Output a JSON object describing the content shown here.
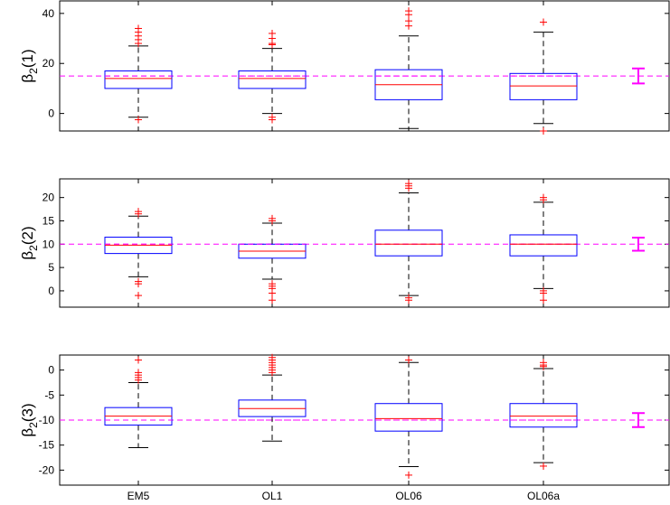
{
  "chart_data": [
    {
      "type": "boxplot",
      "ylabel": "β₂(1)",
      "ylabel_main": "β",
      "ylabel_sub": "2",
      "ylabel_tail": "(1)",
      "ylim": [
        -7,
        45
      ],
      "yticks": [
        0,
        20,
        40
      ],
      "reference_value": 15,
      "interval": {
        "low": 12,
        "high": 18,
        "mid": 15
      },
      "categories": [
        "EM5",
        "OL1",
        "OL06",
        "OL06a"
      ],
      "boxes": [
        {
          "q1": 10,
          "median": 14,
          "q3": 17,
          "mean": 15,
          "whisker_low": -1.5,
          "whisker_high": 27,
          "outliers": [
            -2.5,
            28,
            29.5,
            31,
            32.5,
            34
          ]
        },
        {
          "q1": 10,
          "median": 14,
          "q3": 17,
          "mean": 15,
          "whisker_low": 0,
          "whisker_high": 26,
          "outliers": [
            -2.5,
            -1.5,
            27.5,
            28,
            30,
            32
          ]
        },
        {
          "q1": 5.5,
          "median": 11.5,
          "q3": 17.5,
          "mean": 15,
          "whisker_low": -6,
          "whisker_high": 31,
          "outliers": [
            35,
            37,
            39.5,
            41
          ]
        },
        {
          "q1": 5.5,
          "median": 11,
          "q3": 16,
          "mean": 15,
          "whisker_low": -4,
          "whisker_high": 32.5,
          "outliers": [
            -7,
            36.5
          ]
        }
      ]
    },
    {
      "type": "boxplot",
      "ylabel": "β₂(2)",
      "ylabel_main": "β",
      "ylabel_sub": "2",
      "ylabel_tail": "(2)",
      "ylim": [
        -3.5,
        24
      ],
      "yticks": [
        0,
        5,
        10,
        15,
        20
      ],
      "reference_value": 10,
      "interval": {
        "low": 8.6,
        "high": 11.4,
        "mid": 10
      },
      "categories": [
        "EM5",
        "OL1",
        "OL06",
        "OL06a"
      ],
      "boxes": [
        {
          "q1": 8,
          "median": 9.8,
          "q3": 11.5,
          "mean": 10,
          "whisker_low": 3,
          "whisker_high": 16,
          "outliers": [
            -1,
            1.5,
            2,
            16.5,
            17
          ]
        },
        {
          "q1": 7,
          "median": 8.5,
          "q3": 10,
          "mean": 10,
          "whisker_low": 2.5,
          "whisker_high": 14.5,
          "outliers": [
            -2,
            -0.5,
            0.5,
            1,
            1.5,
            15,
            15.5
          ]
        },
        {
          "q1": 7.5,
          "median": 10,
          "q3": 13,
          "mean": 10,
          "whisker_low": -1,
          "whisker_high": 21,
          "outliers": [
            -2,
            -1.5,
            22,
            22.5,
            23
          ]
        },
        {
          "q1": 7.5,
          "median": 10,
          "q3": 12,
          "mean": 10,
          "whisker_low": 0.5,
          "whisker_high": 19,
          "outliers": [
            -2,
            -0.5,
            0,
            19.5,
            20
          ]
        }
      ]
    },
    {
      "type": "boxplot",
      "ylabel": "β₂(3)",
      "ylabel_main": "β",
      "ylabel_sub": "2",
      "ylabel_tail": "(3)",
      "ylim": [
        -23,
        3
      ],
      "yticks": [
        0,
        -5,
        -10,
        -15,
        -20
      ],
      "reference_value": -10,
      "interval": {
        "low": -11.4,
        "high": -8.6,
        "mid": -10
      },
      "categories": [
        "EM5",
        "OL1",
        "OL06",
        "OL06a"
      ],
      "boxes": [
        {
          "q1": -11,
          "median": -9.2,
          "q3": -7.5,
          "mean": -10,
          "whisker_low": -15.5,
          "whisker_high": -2.5,
          "outliers": [
            -2,
            -1.5,
            -1,
            -0.5,
            2
          ]
        },
        {
          "q1": -9.3,
          "median": -7.7,
          "q3": -6,
          "mean": -10,
          "whisker_low": -14.2,
          "whisker_high": -1,
          "outliers": [
            -0.5,
            0,
            0.5,
            1,
            1.5,
            2,
            2.5
          ]
        },
        {
          "q1": -12.2,
          "median": -9.7,
          "q3": -6.7,
          "mean": -10,
          "whisker_low": -19.3,
          "whisker_high": 1.5,
          "outliers": [
            -21,
            2
          ]
        },
        {
          "q1": -11.4,
          "median": -9.2,
          "q3": -6.7,
          "mean": -10,
          "whisker_low": -18.5,
          "whisker_high": 0.3,
          "outliers": [
            -19.2,
            0.7,
            1,
            1.5
          ]
        }
      ]
    }
  ],
  "colors": {
    "box": "#0000ff",
    "median": "#ff0000",
    "outlier": "#ff0000",
    "reference": "#ff00ff",
    "whisker": "#000000"
  }
}
